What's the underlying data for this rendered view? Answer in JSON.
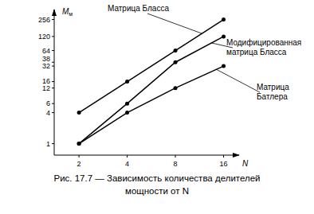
{
  "chart_data": {
    "type": "line",
    "title": "Рис. 17.7 — Зависимость количества делителей мощности от N",
    "x_label": "N",
    "y_label": "Mм",
    "x": [
      2,
      4,
      8,
      16
    ],
    "xlim": [
      1.4,
      20
    ],
    "xticks": [
      2,
      4,
      8,
      16
    ],
    "ylim": [
      0.6,
      400
    ],
    "yticks": [
      1,
      4,
      6,
      12,
      16,
      32,
      38,
      64,
      120,
      256
    ],
    "log": true,
    "grid": false,
    "marker": "circle",
    "line_style": "solid",
    "series": [
      {
        "name": "Матрица Бласса",
        "color": "#000000",
        "values": [
          4,
          16,
          64,
          256
        ]
      },
      {
        "name": "Модифицированная матрица Бласса",
        "color": "#000000",
        "values": [
          1,
          6,
          38,
          120
        ]
      },
      {
        "name": "Матрица Батлера",
        "color": "#000000",
        "values": [
          1,
          4,
          12,
          32
        ]
      }
    ]
  }
}
